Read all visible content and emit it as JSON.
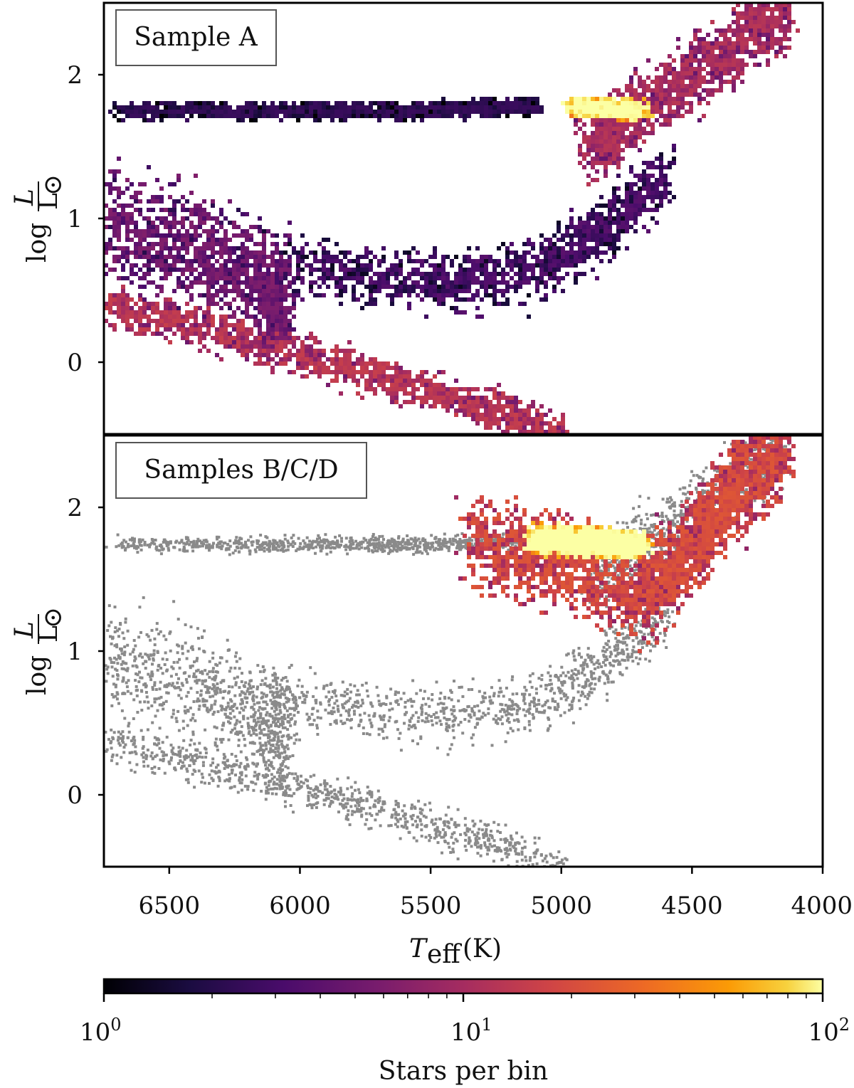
{
  "chart_data": {
    "type": "heatmap",
    "description_type": "2D histogram (Hertzsprung-Russell diagram) with shared x-axis and log colorbar",
    "xlabel_main": "T",
    "xlabel_sub": "eff",
    "xlabel_unit": "(K)",
    "xlim": [
      6750,
      4000
    ],
    "x_ticks": [
      6500,
      6000,
      5500,
      5000,
      4500,
      4000
    ],
    "x_tick_labels": [
      "6500",
      "6000",
      "5500",
      "5000",
      "4500",
      "4000"
    ],
    "ylabel_log": "log",
    "ylabel_num": "L",
    "ylabel_den": "L",
    "ylabel_den_sub": "⊙",
    "ylim": [
      -0.5,
      2.5
    ],
    "y_ticks": [
      0,
      1,
      2
    ],
    "y_tick_labels": [
      "0",
      "1",
      "2"
    ],
    "panels": [
      {
        "label": "Sample A",
        "features": [
          {
            "name": "main-sequence",
            "path": [
              [
                6750,
                0.4
              ],
              [
                6300,
                0.2
              ],
              [
                5800,
                -0.05
              ],
              [
                5400,
                -0.25
              ],
              [
                5000,
                -0.5
              ]
            ],
            "width": 0.2,
            "density": 12
          },
          {
            "name": "turnoff-region",
            "path": [
              [
                6750,
                0.95
              ],
              [
                6400,
                0.8
              ],
              [
                6150,
                0.55
              ],
              [
                6050,
                0.4
              ]
            ],
            "width": 0.55,
            "density": 5
          },
          {
            "name": "subgiant-branch",
            "path": [
              [
                6100,
                0.7
              ],
              [
                5600,
                0.55
              ],
              [
                5150,
                0.6
              ],
              [
                4850,
                0.9
              ],
              [
                4600,
                1.3
              ]
            ],
            "width": 0.3,
            "density": 3
          },
          {
            "name": "horizontal-branch",
            "path": [
              [
                6700,
                1.75
              ],
              [
                6000,
                1.75
              ],
              [
                5500,
                1.75
              ],
              [
                5100,
                1.78
              ]
            ],
            "width": 0.08,
            "density": 2
          },
          {
            "name": "red-clump",
            "path": [
              [
                4950,
                1.78
              ],
              [
                4800,
                1.76
              ],
              [
                4700,
                1.75
              ]
            ],
            "width": 0.08,
            "density": 80
          },
          {
            "name": "red-giant-branch",
            "path": [
              [
                4900,
                1.5
              ],
              [
                4700,
                1.75
              ],
              [
                4400,
                2.1
              ],
              [
                4150,
                2.45
              ]
            ],
            "width": 0.35,
            "density": 10
          }
        ]
      },
      {
        "label": "Samples B/C/D",
        "features": [
          {
            "name": "red-clump",
            "path": [
              [
                5100,
                1.78
              ],
              [
                4900,
                1.76
              ],
              [
                4700,
                1.74
              ]
            ],
            "width": 0.12,
            "density": 95
          },
          {
            "name": "giant-region",
            "path": [
              [
                5350,
                1.75
              ],
              [
                5000,
                1.6
              ],
              [
                4700,
                1.4
              ],
              [
                4500,
                1.7
              ],
              [
                4350,
                2.1
              ],
              [
                4150,
                2.4
              ]
            ],
            "width": 0.45,
            "density": 18
          }
        ],
        "background": "Sample A distribution shown in grey"
      }
    ],
    "colorbar": {
      "scale": "log",
      "range": [
        1,
        100
      ],
      "colormap": "inferno",
      "label": "Stars per bin",
      "tick_labels": [
        {
          "base": "10",
          "exp": "0",
          "value": 1
        },
        {
          "base": "10",
          "exp": "1",
          "value": 10
        },
        {
          "base": "10",
          "exp": "2",
          "value": 100
        }
      ]
    },
    "colors": {
      "background_points": "#8a8a8a"
    }
  }
}
